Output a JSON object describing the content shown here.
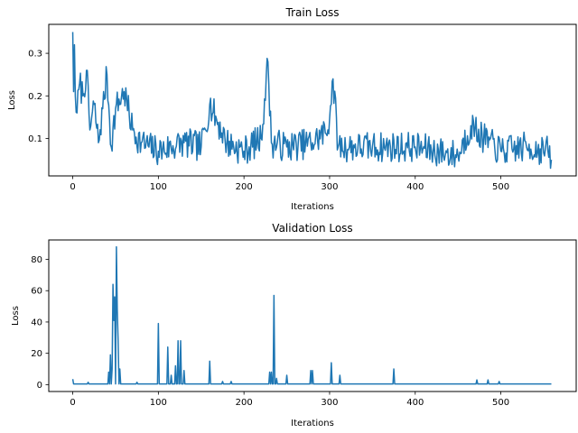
{
  "chart_data": [
    {
      "type": "line",
      "title": "Train Loss",
      "xlabel": "Iterations",
      "ylabel": "Loss",
      "xlim": [
        -28,
        588
      ],
      "ylim": [
        0.012,
        0.368
      ],
      "xticks": [
        0,
        100,
        200,
        300,
        400,
        500
      ],
      "yticks": [
        0.1,
        0.2,
        0.3
      ],
      "ytick_labels": [
        "0.1",
        "0.2",
        "0.3"
      ],
      "grid": false,
      "color": "#1f77b4",
      "anchors": [
        [
          0,
          0.35
        ],
        [
          1,
          0.21
        ],
        [
          2,
          0.32
        ],
        [
          3,
          0.2
        ],
        [
          5,
          0.16
        ],
        [
          8,
          0.23
        ],
        [
          12,
          0.2
        ],
        [
          16,
          0.26
        ],
        [
          20,
          0.12
        ],
        [
          25,
          0.18
        ],
        [
          30,
          0.09
        ],
        [
          35,
          0.17
        ],
        [
          40,
          0.25
        ],
        [
          45,
          0.08
        ],
        [
          50,
          0.17
        ],
        [
          60,
          0.21
        ],
        [
          70,
          0.12
        ],
        [
          80,
          0.09
        ],
        [
          100,
          0.07
        ],
        [
          130,
          0.09
        ],
        [
          150,
          0.08
        ],
        [
          160,
          0.18
        ],
        [
          180,
          0.09
        ],
        [
          200,
          0.07
        ],
        [
          220,
          0.1
        ],
        [
          228,
          0.28
        ],
        [
          232,
          0.09
        ],
        [
          250,
          0.08
        ],
        [
          280,
          0.09
        ],
        [
          298,
          0.12
        ],
        [
          304,
          0.24
        ],
        [
          310,
          0.08
        ],
        [
          350,
          0.08
        ],
        [
          400,
          0.08
        ],
        [
          450,
          0.06
        ],
        [
          465,
          0.13
        ],
        [
          480,
          0.1
        ],
        [
          500,
          0.07
        ],
        [
          530,
          0.08
        ],
        [
          555,
          0.07
        ],
        [
          559,
          0.05
        ]
      ],
      "noise_amp": 0.045,
      "n": 560,
      "seed": 7
    },
    {
      "type": "line",
      "title": "Validation Loss",
      "xlabel": "Iterations",
      "ylabel": "Loss",
      "xlim": [
        -28,
        588
      ],
      "ylim": [
        -4.4,
        92.4
      ],
      "xticks": [
        0,
        100,
        200,
        300,
        400,
        500
      ],
      "yticks": [
        0,
        20,
        40,
        60,
        80
      ],
      "ytick_labels": [
        "0",
        "20",
        "40",
        "60",
        "80"
      ],
      "grid": false,
      "color": "#1f77b4",
      "baseline": 0.4,
      "spikes": [
        [
          0,
          3.5
        ],
        [
          18,
          1.5
        ],
        [
          42,
          8
        ],
        [
          44,
          19
        ],
        [
          46,
          10
        ],
        [
          47,
          64
        ],
        [
          48,
          41
        ],
        [
          49,
          56
        ],
        [
          51,
          88
        ],
        [
          52,
          48
        ],
        [
          53,
          28
        ],
        [
          55,
          10
        ],
        [
          75,
          1.5
        ],
        [
          100,
          39
        ],
        [
          111,
          24
        ],
        [
          115,
          6
        ],
        [
          120,
          12
        ],
        [
          123,
          28
        ],
        [
          126,
          28
        ],
        [
          130,
          9
        ],
        [
          160,
          15
        ],
        [
          175,
          2
        ],
        [
          185,
          2
        ],
        [
          230,
          8
        ],
        [
          232,
          8
        ],
        [
          235,
          57
        ],
        [
          238,
          4
        ],
        [
          250,
          6
        ],
        [
          278,
          9
        ],
        [
          280,
          9
        ],
        [
          302,
          14
        ],
        [
          312,
          6
        ],
        [
          375,
          10
        ],
        [
          472,
          3
        ],
        [
          485,
          3
        ],
        [
          498,
          2
        ]
      ],
      "n": 560
    }
  ]
}
